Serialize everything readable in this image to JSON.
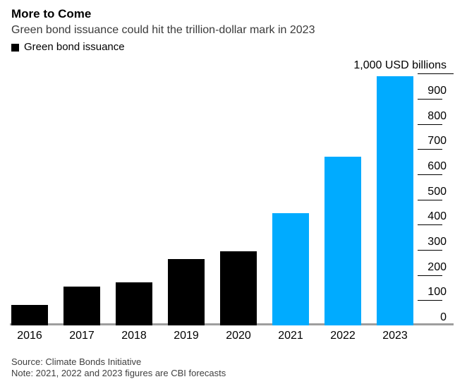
{
  "header": {
    "title": "More to Come",
    "subtitle": "Green bond issuance could hit the trillion-dollar mark in 2023"
  },
  "legend": {
    "label": "Green bond issuance",
    "swatch_color": "#000000"
  },
  "chart_data": {
    "type": "bar",
    "title": "More to Come",
    "subtitle": "Green bond issuance could hit the trillion-dollar mark in 2023",
    "categories": [
      "2016",
      "2017",
      "2018",
      "2019",
      "2020",
      "2021",
      "2022",
      "2023"
    ],
    "series": [
      {
        "name": "Green bond issuance",
        "values": [
          80,
          155,
          170,
          265,
          295,
          445,
          670,
          990
        ]
      }
    ],
    "unit_label": "1,000 USD billions",
    "ylabel": "USD billions",
    "xlabel": "",
    "ylim": [
      0,
      1000
    ],
    "y_ticks": [
      0,
      100,
      200,
      300,
      400,
      500,
      600,
      700,
      800,
      900
    ],
    "axis_side": "right",
    "grid": false,
    "legend_position": "top-left",
    "actual_color": "#000000",
    "forecast_color": "#00abff",
    "forecast_start_index": 5,
    "baseline_color": "#9e9e9e",
    "tick_color": "#000000"
  },
  "footer": {
    "source": "Source: Climate Bonds Initiative",
    "note": "Note: 2021, 2022 and 2023 figures are CBI forecasts"
  }
}
